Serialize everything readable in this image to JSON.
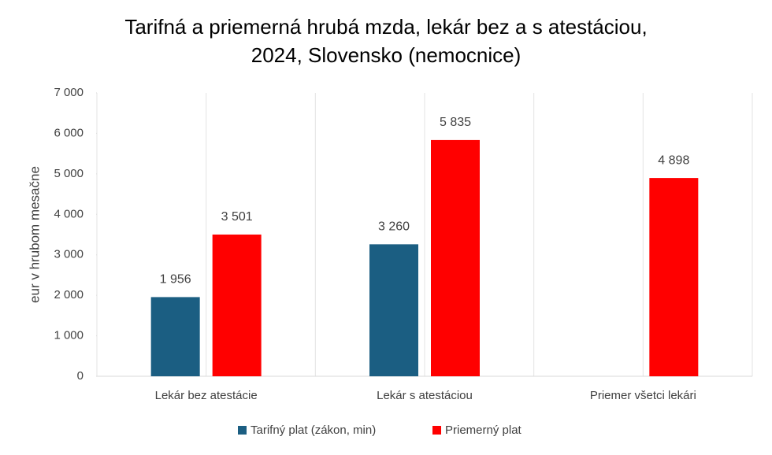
{
  "chart_data": {
    "type": "bar",
    "title": "Tarifná a priemerná hrubá mzda, lekár bez a s atestáciou,\n2024, Slovensko (nemocnice)",
    "y_label": "eur v hrubom mesačne",
    "categories": [
      "Lekár bez atestácie",
      "Lekár s atestáciou",
      "Priemer všetci lekári"
    ],
    "series": [
      {
        "name": "Tarifný plat (zákon, min)",
        "color": "#1b5e82",
        "values": [
          1956,
          3260,
          null
        ],
        "value_labels": [
          "1 956",
          "3 260",
          null
        ]
      },
      {
        "name": "Priemerný plat",
        "color": "#ff0000",
        "values": [
          3501,
          5835,
          4898
        ],
        "value_labels": [
          "3 501",
          "5 835",
          "4 898"
        ]
      }
    ],
    "ylim": [
      0,
      7000
    ],
    "yticks": [
      0,
      {
        "value": 1000,
        "label": "1 000"
      },
      {
        "value": 2000,
        "label": "2 000"
      },
      {
        "value": 3000,
        "label": "3 000"
      },
      {
        "value": 4000,
        "label": "4 000"
      },
      {
        "value": 5000,
        "label": "5 000"
      },
      {
        "value": 6000,
        "label": "6 000"
      },
      {
        "value": 7000,
        "label": "7 000"
      }
    ],
    "vertical_grid": true,
    "legend": "bottom"
  }
}
